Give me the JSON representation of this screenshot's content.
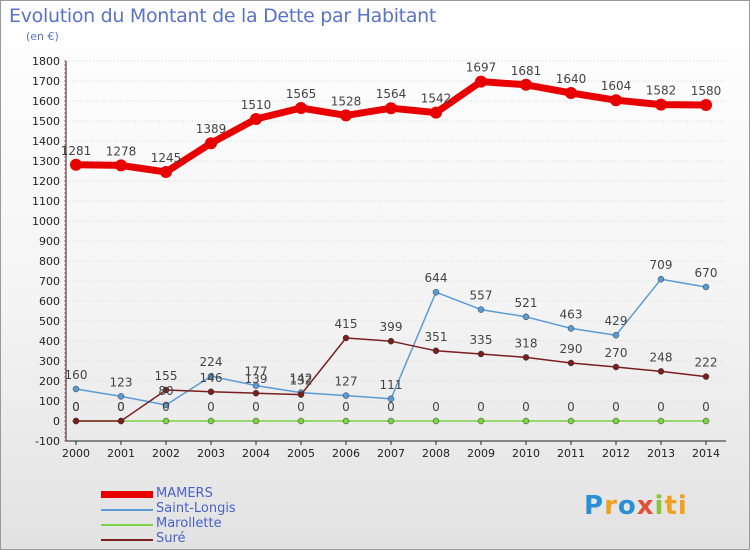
{
  "title": "Evolution du Montant de la Dette par Habitant",
  "unit": "(en €)",
  "logo": "Proxiti",
  "colors": {
    "MAMERS": "#e80000",
    "Saint-Longis": "#5b9bd5",
    "Marollette": "#7cd444",
    "Suré": "#7a1e1e",
    "grid": "#d9d9d9",
    "axis": "#222222",
    "label": "#444444"
  },
  "chart_data": {
    "type": "line",
    "title": "Evolution du Montant de la Dette par Habitant",
    "ylabel": "(en €)",
    "x": [
      "2000",
      "2001",
      "2002",
      "2003",
      "2004",
      "2005",
      "2006",
      "2007",
      "2008",
      "2009",
      "2010",
      "2011",
      "2012",
      "2013",
      "2014"
    ],
    "ylim": [
      -100,
      1800
    ],
    "yticks": [
      -100,
      0,
      100,
      200,
      300,
      400,
      500,
      600,
      700,
      800,
      900,
      1000,
      1100,
      1200,
      1300,
      1400,
      1500,
      1600,
      1700,
      1800
    ],
    "grid": true,
    "legend_position": "bottom-left",
    "series": [
      {
        "name": "MAMERS",
        "values": [
          1281,
          1278,
          1245,
          1389,
          1510,
          1565,
          1528,
          1564,
          1542,
          1697,
          1681,
          1640,
          1604,
          1582,
          1580
        ]
      },
      {
        "name": "Saint-Longis",
        "values": [
          160,
          123,
          80,
          224,
          177,
          142,
          127,
          111,
          644,
          557,
          521,
          463,
          429,
          709,
          670
        ]
      },
      {
        "name": "Marollette",
        "values": [
          0,
          0,
          0,
          0,
          0,
          0,
          0,
          0,
          0,
          0,
          0,
          0,
          0,
          0,
          0
        ]
      },
      {
        "name": "Suré",
        "values": [
          0,
          0,
          155,
          146,
          139,
          132,
          415,
          399,
          351,
          335,
          318,
          290,
          270,
          248,
          222
        ]
      }
    ],
    "point_labels": {
      "MAMERS": [
        "1281",
        "1278",
        "1245",
        "1389",
        "1510",
        "1565",
        "1528",
        "1564",
        "1542",
        "1697",
        "1681",
        "1640",
        "1604",
        "1582",
        "1580"
      ],
      "Saint-Longis": [
        "160",
        "123",
        "80",
        "224",
        "177",
        "142",
        "127",
        "111",
        "644",
        "557",
        "521",
        "463",
        "429",
        "709",
        "670"
      ],
      "Marollette": [
        "0",
        "0",
        "0",
        "0",
        "0",
        "0",
        "0",
        "0",
        "0",
        "0",
        "0",
        "0",
        "0",
        "0",
        "0"
      ],
      "Suré": [
        "0",
        "0",
        "155",
        "146",
        "139",
        "132",
        "415",
        "399",
        "351",
        "335",
        "318",
        "290",
        "270",
        "248",
        "222"
      ]
    }
  },
  "legend": [
    {
      "name": "MAMERS"
    },
    {
      "name": "Saint-Longis"
    },
    {
      "name": "Marollette"
    },
    {
      "name": "Suré"
    }
  ]
}
